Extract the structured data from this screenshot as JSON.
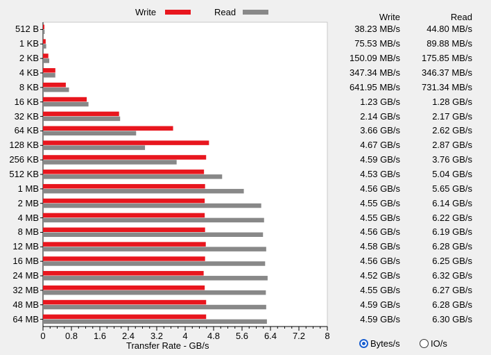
{
  "legend": {
    "write_label": "Write",
    "read_label": "Read",
    "write_color": "#e8161e",
    "read_color": "#888888"
  },
  "columns": {
    "write_header": "Write",
    "read_header": "Read"
  },
  "units": {
    "bytes_label": "Bytes/s",
    "io_label": "IO/s",
    "selected": "bytes"
  },
  "chart_data": {
    "type": "bar",
    "orientation": "horizontal",
    "xlabel": "Transfer Rate - GB/s",
    "xlim": [
      0,
      8
    ],
    "xticks": [
      "0",
      "0.8",
      "1.6",
      "2.4",
      "3.2",
      "4",
      "4.8",
      "5.6",
      "6.4",
      "7.2",
      "8"
    ],
    "categories": [
      "512 B",
      "1 KB",
      "2 KB",
      "4 KB",
      "8 KB",
      "16 KB",
      "32 KB",
      "64 KB",
      "128 KB",
      "256 KB",
      "512 KB",
      "1 MB",
      "2 MB",
      "4 MB",
      "8 MB",
      "12 MB",
      "16 MB",
      "24 MB",
      "32 MB",
      "48 MB",
      "64 MB"
    ],
    "series": [
      {
        "name": "Write",
        "color": "#e8161e",
        "values": [
          0.03823,
          0.07553,
          0.15009,
          0.34734,
          0.64195,
          1.23,
          2.14,
          3.66,
          4.67,
          4.59,
          4.53,
          4.56,
          4.55,
          4.55,
          4.56,
          4.58,
          4.56,
          4.52,
          4.55,
          4.59,
          4.59
        ],
        "labels": [
          "38.23 MB/s",
          "75.53 MB/s",
          "150.09 MB/s",
          "347.34 MB/s",
          "641.95 MB/s",
          "1.23 GB/s",
          "2.14 GB/s",
          "3.66 GB/s",
          "4.67 GB/s",
          "4.59 GB/s",
          "4.53 GB/s",
          "4.56 GB/s",
          "4.55 GB/s",
          "4.55 GB/s",
          "4.56 GB/s",
          "4.58 GB/s",
          "4.56 GB/s",
          "4.52 GB/s",
          "4.55 GB/s",
          "4.59 GB/s",
          "4.59 GB/s"
        ]
      },
      {
        "name": "Read",
        "color": "#888888",
        "values": [
          0.0448,
          0.08988,
          0.17585,
          0.34637,
          0.73134,
          1.28,
          2.17,
          2.62,
          2.87,
          3.76,
          5.04,
          5.65,
          6.14,
          6.22,
          6.19,
          6.28,
          6.25,
          6.32,
          6.27,
          6.28,
          6.3
        ],
        "labels": [
          "44.80 MB/s",
          "89.88 MB/s",
          "175.85 MB/s",
          "346.37 MB/s",
          "731.34 MB/s",
          "1.28 GB/s",
          "2.17 GB/s",
          "2.62 GB/s",
          "2.87 GB/s",
          "3.76 GB/s",
          "5.04 GB/s",
          "5.65 GB/s",
          "6.14 GB/s",
          "6.22 GB/s",
          "6.19 GB/s",
          "6.28 GB/s",
          "6.25 GB/s",
          "6.32 GB/s",
          "6.27 GB/s",
          "6.28 GB/s",
          "6.30 GB/s"
        ]
      }
    ]
  }
}
